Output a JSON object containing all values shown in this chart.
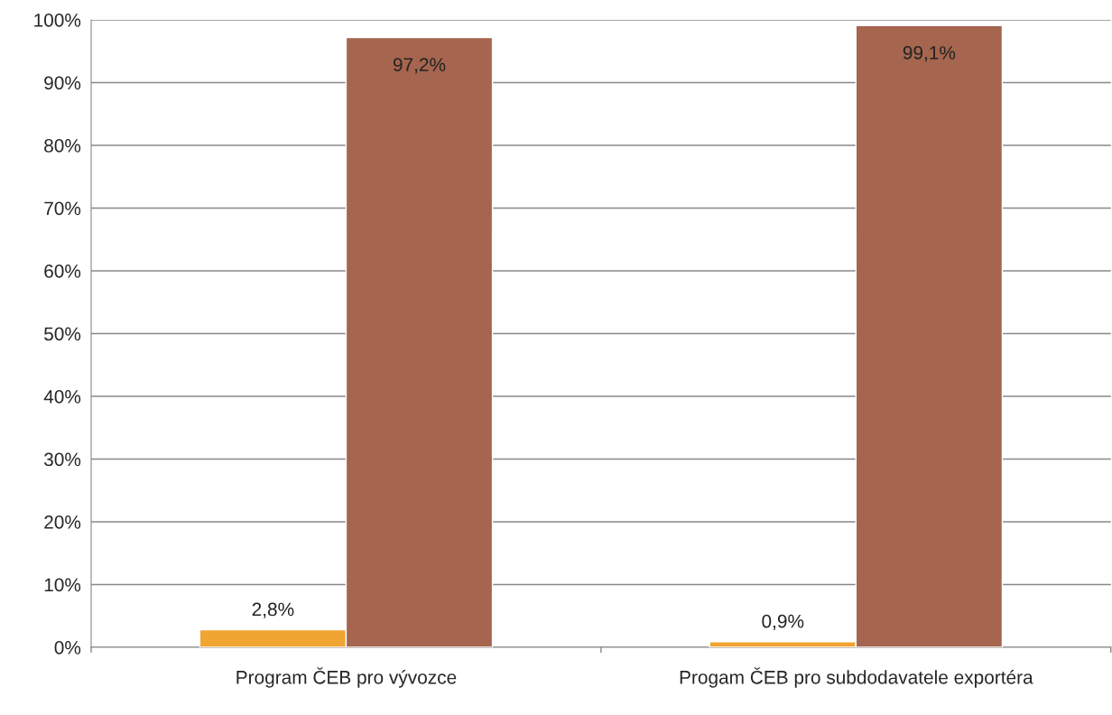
{
  "chart_data": {
    "type": "bar",
    "categories": [
      "Program ČEB pro vývozce",
      "Progam ČEB pro subdodavatele exportéra"
    ],
    "series": [
      {
        "color": "#f0a431",
        "values": [
          2.8,
          0.9
        ],
        "value_labels": [
          "2,8%",
          "0,9%"
        ]
      },
      {
        "color": "#a5654e",
        "values": [
          97.2,
          99.1
        ],
        "value_labels": [
          "97,2%",
          "99,1%"
        ]
      }
    ],
    "ylim": [
      0,
      100
    ],
    "yticks": [
      {
        "value": 0,
        "label": "0%"
      },
      {
        "value": 10,
        "label": "10%"
      },
      {
        "value": 20,
        "label": "20%"
      },
      {
        "value": 30,
        "label": "30%"
      },
      {
        "value": 40,
        "label": "40%"
      },
      {
        "value": 50,
        "label": "50%"
      },
      {
        "value": 60,
        "label": "60%"
      },
      {
        "value": 70,
        "label": "70%"
      },
      {
        "value": 80,
        "label": "80%"
      },
      {
        "value": 90,
        "label": "90%"
      },
      {
        "value": 100,
        "label": "100%"
      }
    ],
    "grid": "y"
  }
}
